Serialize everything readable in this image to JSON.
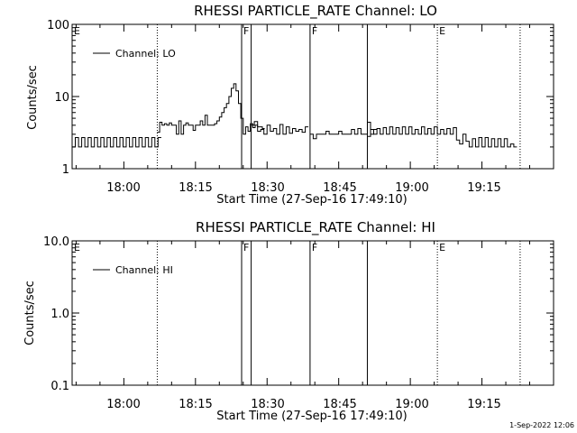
{
  "chart_data": [
    {
      "type": "line",
      "title": "RHESSI PARTICLE_RATE Channel: LO",
      "xlabel": "Start Time (27-Sep-16 17:49:10)",
      "ylabel": "Counts/sec",
      "y_scale": "log",
      "ylim": [
        1,
        100
      ],
      "y_ticks": [
        "1",
        "10",
        "100"
      ],
      "xlim": [
        "17:49:10",
        "19:30:00"
      ],
      "x_ticks": [
        "18:00",
        "18:15",
        "18:30",
        "18:45",
        "19:00",
        "19:15"
      ],
      "legend": {
        "label": "Channel: LO",
        "placement": "top-left"
      },
      "markers": [
        {
          "time": "17:49:10",
          "style": "none",
          "label": "E"
        },
        {
          "time": "18:07:00",
          "style": "dotted",
          "label": ""
        },
        {
          "time": "18:24:40",
          "style": "solid",
          "label": "F"
        },
        {
          "time": "18:26:40",
          "style": "solid",
          "label": ""
        },
        {
          "time": "18:39:00",
          "style": "solid",
          "label": "F"
        },
        {
          "time": "18:51:00",
          "style": "solid",
          "label": ""
        },
        {
          "time": "19:05:40",
          "style": "dotted",
          "label": "E"
        },
        {
          "time": "19:23:00",
          "style": "dotted",
          "label": ""
        }
      ],
      "series": [
        {
          "name": "Channel: LO",
          "segments": [
            {
              "start": "17:49:10",
              "step_s": 40,
              "values": [
                2,
                2.7,
                2,
                2.7,
                2,
                2.7,
                2,
                2.7,
                2,
                2.7,
                2,
                2.7,
                2,
                2.7,
                2,
                2.7,
                2,
                2.7,
                2,
                2.7,
                2,
                2.7,
                2,
                2.7,
                2,
                2.7,
                2,
                2.7
              ]
            },
            {
              "start": "18:07:00",
              "step_s": 30,
              "values": [
                3.2,
                4.4,
                4,
                4.2,
                4,
                4.3,
                4,
                4,
                3,
                4.6,
                3,
                4,
                4.3,
                4,
                4,
                3.4,
                4,
                4,
                4.6,
                4,
                5.5,
                4,
                4,
                4,
                4.2,
                4.6,
                5.2,
                6,
                7,
                8,
                10,
                13,
                15,
                12,
                8,
                5,
                3,
                3.8,
                3.3,
                4.2,
                3.7,
                4,
                3.8,
                3.8,
                3.6
              ]
            },
            {
              "start": "18:26:40",
              "step_s": 40,
              "values": [
                4,
                4.5,
                3.3,
                3.5,
                3,
                4,
                3.3,
                3.6,
                3,
                4.1,
                3,
                3.8,
                3.1,
                3.6,
                3.3,
                3.5,
                3.2,
                3.8
              ]
            },
            {
              "start": "18:39:00",
              "step_s": 40,
              "values": [
                3,
                2.6,
                3,
                3,
                3,
                3.3,
                3,
                3,
                3,
                3.3,
                3,
                3,
                3,
                3.5,
                3,
                3.6,
                3,
                3,
                4.4,
                3,
                3.5
              ]
            },
            {
              "start": "18:51:00",
              "step_s": 40,
              "values": [
                2.8,
                3.5,
                3,
                3.6,
                3,
                3.7,
                3,
                3.8,
                3,
                3.7,
                3,
                3.8,
                3,
                3.8,
                3,
                3.5,
                3,
                3.8,
                3,
                3.6,
                3,
                3.8,
                3,
                3.5,
                3,
                3.6,
                3,
                3.7,
                2.5,
                2.2,
                3,
                2.4,
                2,
                2.6,
                2,
                2.7,
                2,
                2.7,
                2,
                2.6,
                2,
                2.6,
                2,
                2.6,
                2,
                2.2,
                2
              ]
            }
          ]
        }
      ]
    },
    {
      "type": "line",
      "title": "RHESSI PARTICLE_RATE Channel: HI",
      "xlabel": "Start Time (27-Sep-16 17:49:10)",
      "ylabel": "Counts/sec",
      "y_scale": "log",
      "ylim": [
        0.1,
        10
      ],
      "y_ticks": [
        "0.1",
        "1.0",
        "10.0"
      ],
      "xlim": [
        "17:49:10",
        "19:30:00"
      ],
      "x_ticks": [
        "18:00",
        "18:15",
        "18:30",
        "18:45",
        "19:00",
        "19:15"
      ],
      "legend": {
        "label": "Channel: HI",
        "placement": "top-left"
      },
      "markers": [
        {
          "time": "17:49:10",
          "style": "none",
          "label": "E"
        },
        {
          "time": "18:07:00",
          "style": "dotted",
          "label": ""
        },
        {
          "time": "18:24:40",
          "style": "solid",
          "label": "F"
        },
        {
          "time": "18:26:40",
          "style": "solid",
          "label": ""
        },
        {
          "time": "18:39:00",
          "style": "solid",
          "label": "F"
        },
        {
          "time": "18:51:00",
          "style": "solid",
          "label": ""
        },
        {
          "time": "19:05:40",
          "style": "dotted",
          "label": "E"
        },
        {
          "time": "19:23:00",
          "style": "dotted",
          "label": ""
        }
      ],
      "series": [
        {
          "name": "Channel: HI",
          "segments": []
        }
      ]
    }
  ],
  "footer": {
    "timestamp": "1-Sep-2022 12:06"
  }
}
